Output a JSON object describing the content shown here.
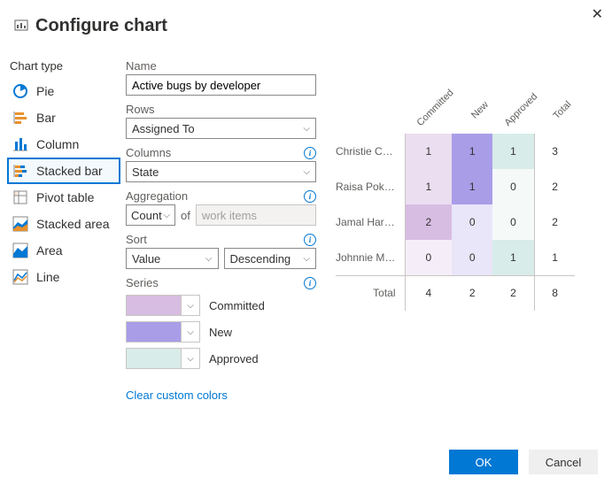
{
  "dialog": {
    "title": "Configure chart"
  },
  "chart_types": {
    "label": "Chart type",
    "items": [
      {
        "label": "Pie"
      },
      {
        "label": "Bar"
      },
      {
        "label": "Column"
      },
      {
        "label": "Stacked bar"
      },
      {
        "label": "Pivot table"
      },
      {
        "label": "Stacked area"
      },
      {
        "label": "Area"
      },
      {
        "label": "Line"
      }
    ],
    "selected_index": 3
  },
  "form": {
    "name_label": "Name",
    "name_value": "Active bugs by developer",
    "rows_label": "Rows",
    "rows_value": "Assigned To",
    "columns_label": "Columns",
    "columns_value": "State",
    "aggregation_label": "Aggregation",
    "aggregation_value": "Count",
    "aggregation_of": "of",
    "aggregation_target": "work items",
    "sort_label": "Sort",
    "sort_by": "Value",
    "sort_dir": "Descending",
    "series_label": "Series",
    "series": [
      {
        "label": "Committed",
        "color": "#d7bde2"
      },
      {
        "label": "New",
        "color": "#a99de8"
      },
      {
        "label": "Approved",
        "color": "#d8ece9"
      }
    ],
    "clear_colors": "Clear custom colors"
  },
  "preview": {
    "col_colors": [
      "#d7bde2",
      "#a99de8",
      "#d8ece9"
    ],
    "cols": [
      "Committed",
      "New",
      "Approved",
      "Total"
    ],
    "rows": [
      {
        "label": "Christie Ch...",
        "cells": [
          1,
          1,
          1,
          3
        ]
      },
      {
        "label": "Raisa Pokro...",
        "cells": [
          1,
          1,
          0,
          2
        ]
      },
      {
        "label": "Jamal Hartn...",
        "cells": [
          2,
          0,
          0,
          2
        ]
      },
      {
        "label": "Johnnie McL...",
        "cells": [
          0,
          0,
          1,
          1
        ]
      }
    ],
    "total_label": "Total",
    "totals": [
      4,
      2,
      2,
      8
    ]
  },
  "footer": {
    "ok": "OK",
    "cancel": "Cancel"
  }
}
